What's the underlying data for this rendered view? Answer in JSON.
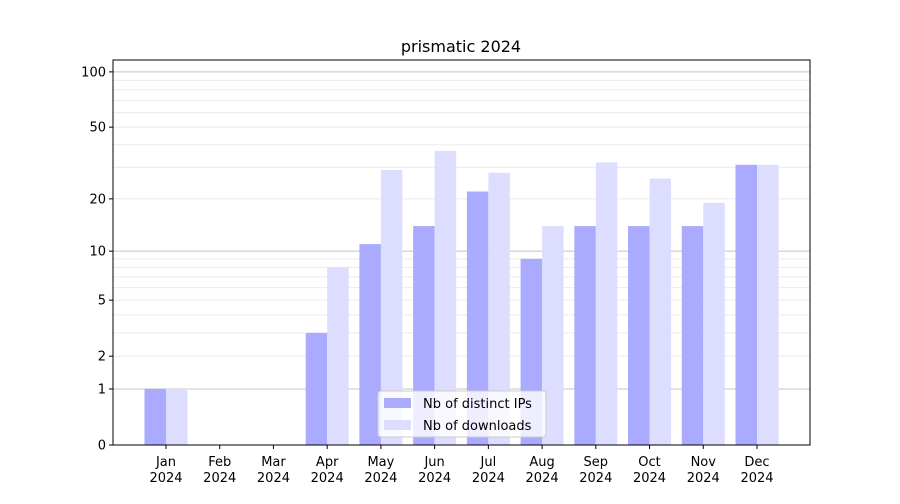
{
  "chart_data": {
    "type": "bar",
    "title": "prismatic 2024",
    "xlabel": "",
    "ylabel": "",
    "yscale": "log10(1+y)",
    "ylim": [
      0,
      116
    ],
    "yticks": [
      0,
      1,
      2,
      5,
      10,
      20,
      50,
      100
    ],
    "grid": true,
    "legend_placement": "lower-center",
    "categories": [
      "Jan\n2024",
      "Feb\n2024",
      "Mar\n2024",
      "Apr\n2024",
      "May\n2024",
      "Jun\n2024",
      "Jul\n2024",
      "Aug\n2024",
      "Sep\n2024",
      "Oct\n2024",
      "Nov\n2024",
      "Dec\n2024"
    ],
    "series": [
      {
        "name": "Nb of distinct IPs",
        "color": "#aaaaff",
        "values": [
          1,
          0,
          0,
          3,
          11,
          14,
          22,
          9,
          14,
          14,
          14,
          31
        ]
      },
      {
        "name": "Nb of downloads",
        "color": "#ddddff",
        "values": [
          1,
          0,
          0,
          8,
          29,
          37,
          28,
          14,
          32,
          26,
          19,
          31
        ]
      }
    ]
  }
}
